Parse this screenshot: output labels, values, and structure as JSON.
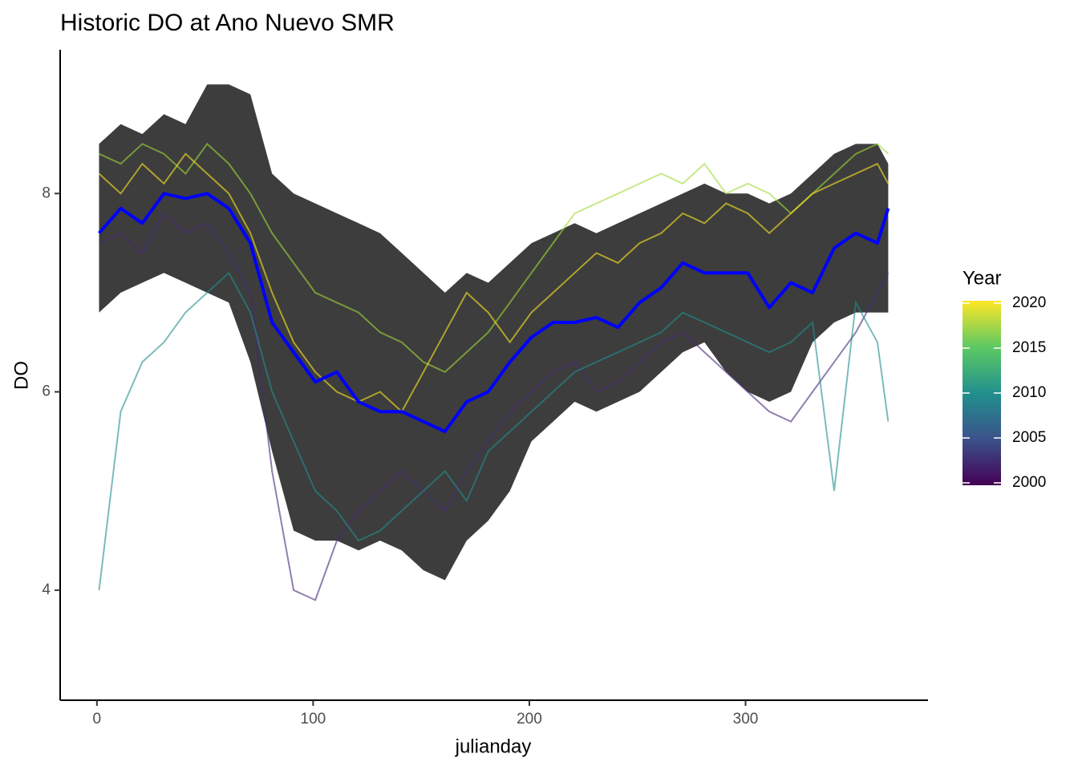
{
  "chart_data": {
    "type": "line",
    "title": "Historic DO at Ano Nuevo SMR",
    "x_label": "julianday",
    "y_label": "DO",
    "xlim": [
      -17,
      384.4
    ],
    "ylim": [
      2.89,
      9.45
    ],
    "xticks": [
      0,
      100,
      200,
      300
    ],
    "yticks": [
      4,
      6,
      8
    ],
    "x": [
      1,
      11,
      21,
      31,
      41,
      51,
      61,
      71,
      81,
      91,
      101,
      111,
      121,
      131,
      141,
      151,
      161,
      171,
      181,
      191,
      201,
      211,
      221,
      231,
      241,
      251,
      261,
      271,
      281,
      291,
      301,
      311,
      321,
      331,
      341,
      351,
      361,
      366
    ],
    "ribbon": {
      "color": "#3d3d3d",
      "upper": [
        8.5,
        8.7,
        8.6,
        8.8,
        8.7,
        9.1,
        9.1,
        9.0,
        8.2,
        8.0,
        7.9,
        7.8,
        7.7,
        7.6,
        7.4,
        7.2,
        7.0,
        7.2,
        7.1,
        7.3,
        7.5,
        7.6,
        7.7,
        7.6,
        7.7,
        7.8,
        7.9,
        8.0,
        8.1,
        8.0,
        8.0,
        7.9,
        8.0,
        8.2,
        8.4,
        8.5,
        8.5,
        8.3
      ],
      "lower": [
        6.8,
        7.0,
        7.1,
        7.2,
        7.1,
        7.0,
        6.9,
        6.3,
        5.4,
        4.6,
        4.5,
        4.5,
        4.4,
        4.5,
        4.4,
        4.2,
        4.1,
        4.5,
        4.7,
        5.0,
        5.5,
        5.7,
        5.9,
        5.8,
        5.9,
        6.0,
        6.2,
        6.4,
        6.5,
        6.2,
        6.0,
        5.9,
        6.0,
        6.5,
        6.7,
        6.8,
        6.8,
        6.8
      ]
    },
    "series": [
      {
        "color": "#a0da39",
        "values": [
          8.4,
          8.3,
          8.5,
          8.4,
          8.2,
          8.5,
          8.3,
          8.0,
          7.6,
          7.3,
          7.0,
          6.9,
          6.8,
          6.6,
          6.5,
          6.3,
          6.2,
          6.4,
          6.6,
          6.9,
          7.2,
          7.5,
          7.8,
          7.9,
          8.0,
          8.1,
          8.2,
          8.1,
          8.3,
          8.0,
          8.1,
          8.0,
          7.8,
          8.0,
          8.2,
          8.4,
          8.5,
          8.4
        ]
      },
      {
        "color": "#482878",
        "values": [
          7.5,
          7.6,
          7.4,
          7.8,
          7.6,
          7.7,
          7.4,
          7.0,
          5.2,
          4.0,
          3.9,
          4.5,
          4.8,
          5.0,
          5.2,
          5.0,
          4.8,
          5.2,
          5.5,
          5.8,
          6.0,
          6.2,
          6.3,
          6.0,
          6.1,
          6.3,
          6.5,
          6.6,
          6.4,
          6.2,
          6.0,
          5.8,
          5.7,
          6.0,
          6.3,
          6.6,
          7.0,
          7.2
        ]
      },
      {
        "color": "#21908d",
        "values": [
          4.0,
          5.8,
          6.3,
          6.5,
          6.8,
          7.0,
          7.2,
          6.8,
          6.0,
          5.5,
          5.0,
          4.8,
          4.5,
          4.6,
          4.8,
          5.0,
          5.2,
          4.9,
          5.4,
          5.6,
          5.8,
          6.0,
          6.2,
          6.3,
          6.4,
          6.5,
          6.6,
          6.8,
          6.7,
          6.6,
          6.5,
          6.4,
          6.5,
          6.7,
          5.0,
          6.9,
          6.5,
          5.7
        ]
      },
      {
        "color": "#fde725",
        "values": [
          8.2,
          8.0,
          8.3,
          8.1,
          8.4,
          8.2,
          8.0,
          7.6,
          7.0,
          6.5,
          6.2,
          6.0,
          5.9,
          6.0,
          5.8,
          6.2,
          6.6,
          7.0,
          6.8,
          6.5,
          6.8,
          7.0,
          7.2,
          7.4,
          7.3,
          7.5,
          7.6,
          7.8,
          7.7,
          7.9,
          7.8,
          7.6,
          7.8,
          8.0,
          8.1,
          8.2,
          8.3,
          8.1
        ]
      }
    ],
    "mean": {
      "color": "#0000ff",
      "values": [
        7.6,
        7.85,
        7.7,
        8.0,
        7.95,
        8.0,
        7.85,
        7.5,
        6.7,
        6.4,
        6.1,
        6.2,
        5.9,
        5.8,
        5.8,
        5.7,
        5.6,
        5.9,
        6.0,
        6.3,
        6.55,
        6.7,
        6.7,
        6.75,
        6.65,
        6.9,
        7.05,
        7.3,
        7.2,
        7.2,
        7.2,
        6.85,
        7.1,
        7.0,
        7.45,
        7.6,
        7.5,
        7.85
      ]
    },
    "colorbar": {
      "title": "Year",
      "range": [
        2000,
        2020
      ],
      "ticks": [
        2000,
        2005,
        2010,
        2015,
        2020
      ],
      "colors": [
        "#440154",
        "#3b528b",
        "#21908d",
        "#5dc963",
        "#fde725"
      ]
    }
  }
}
